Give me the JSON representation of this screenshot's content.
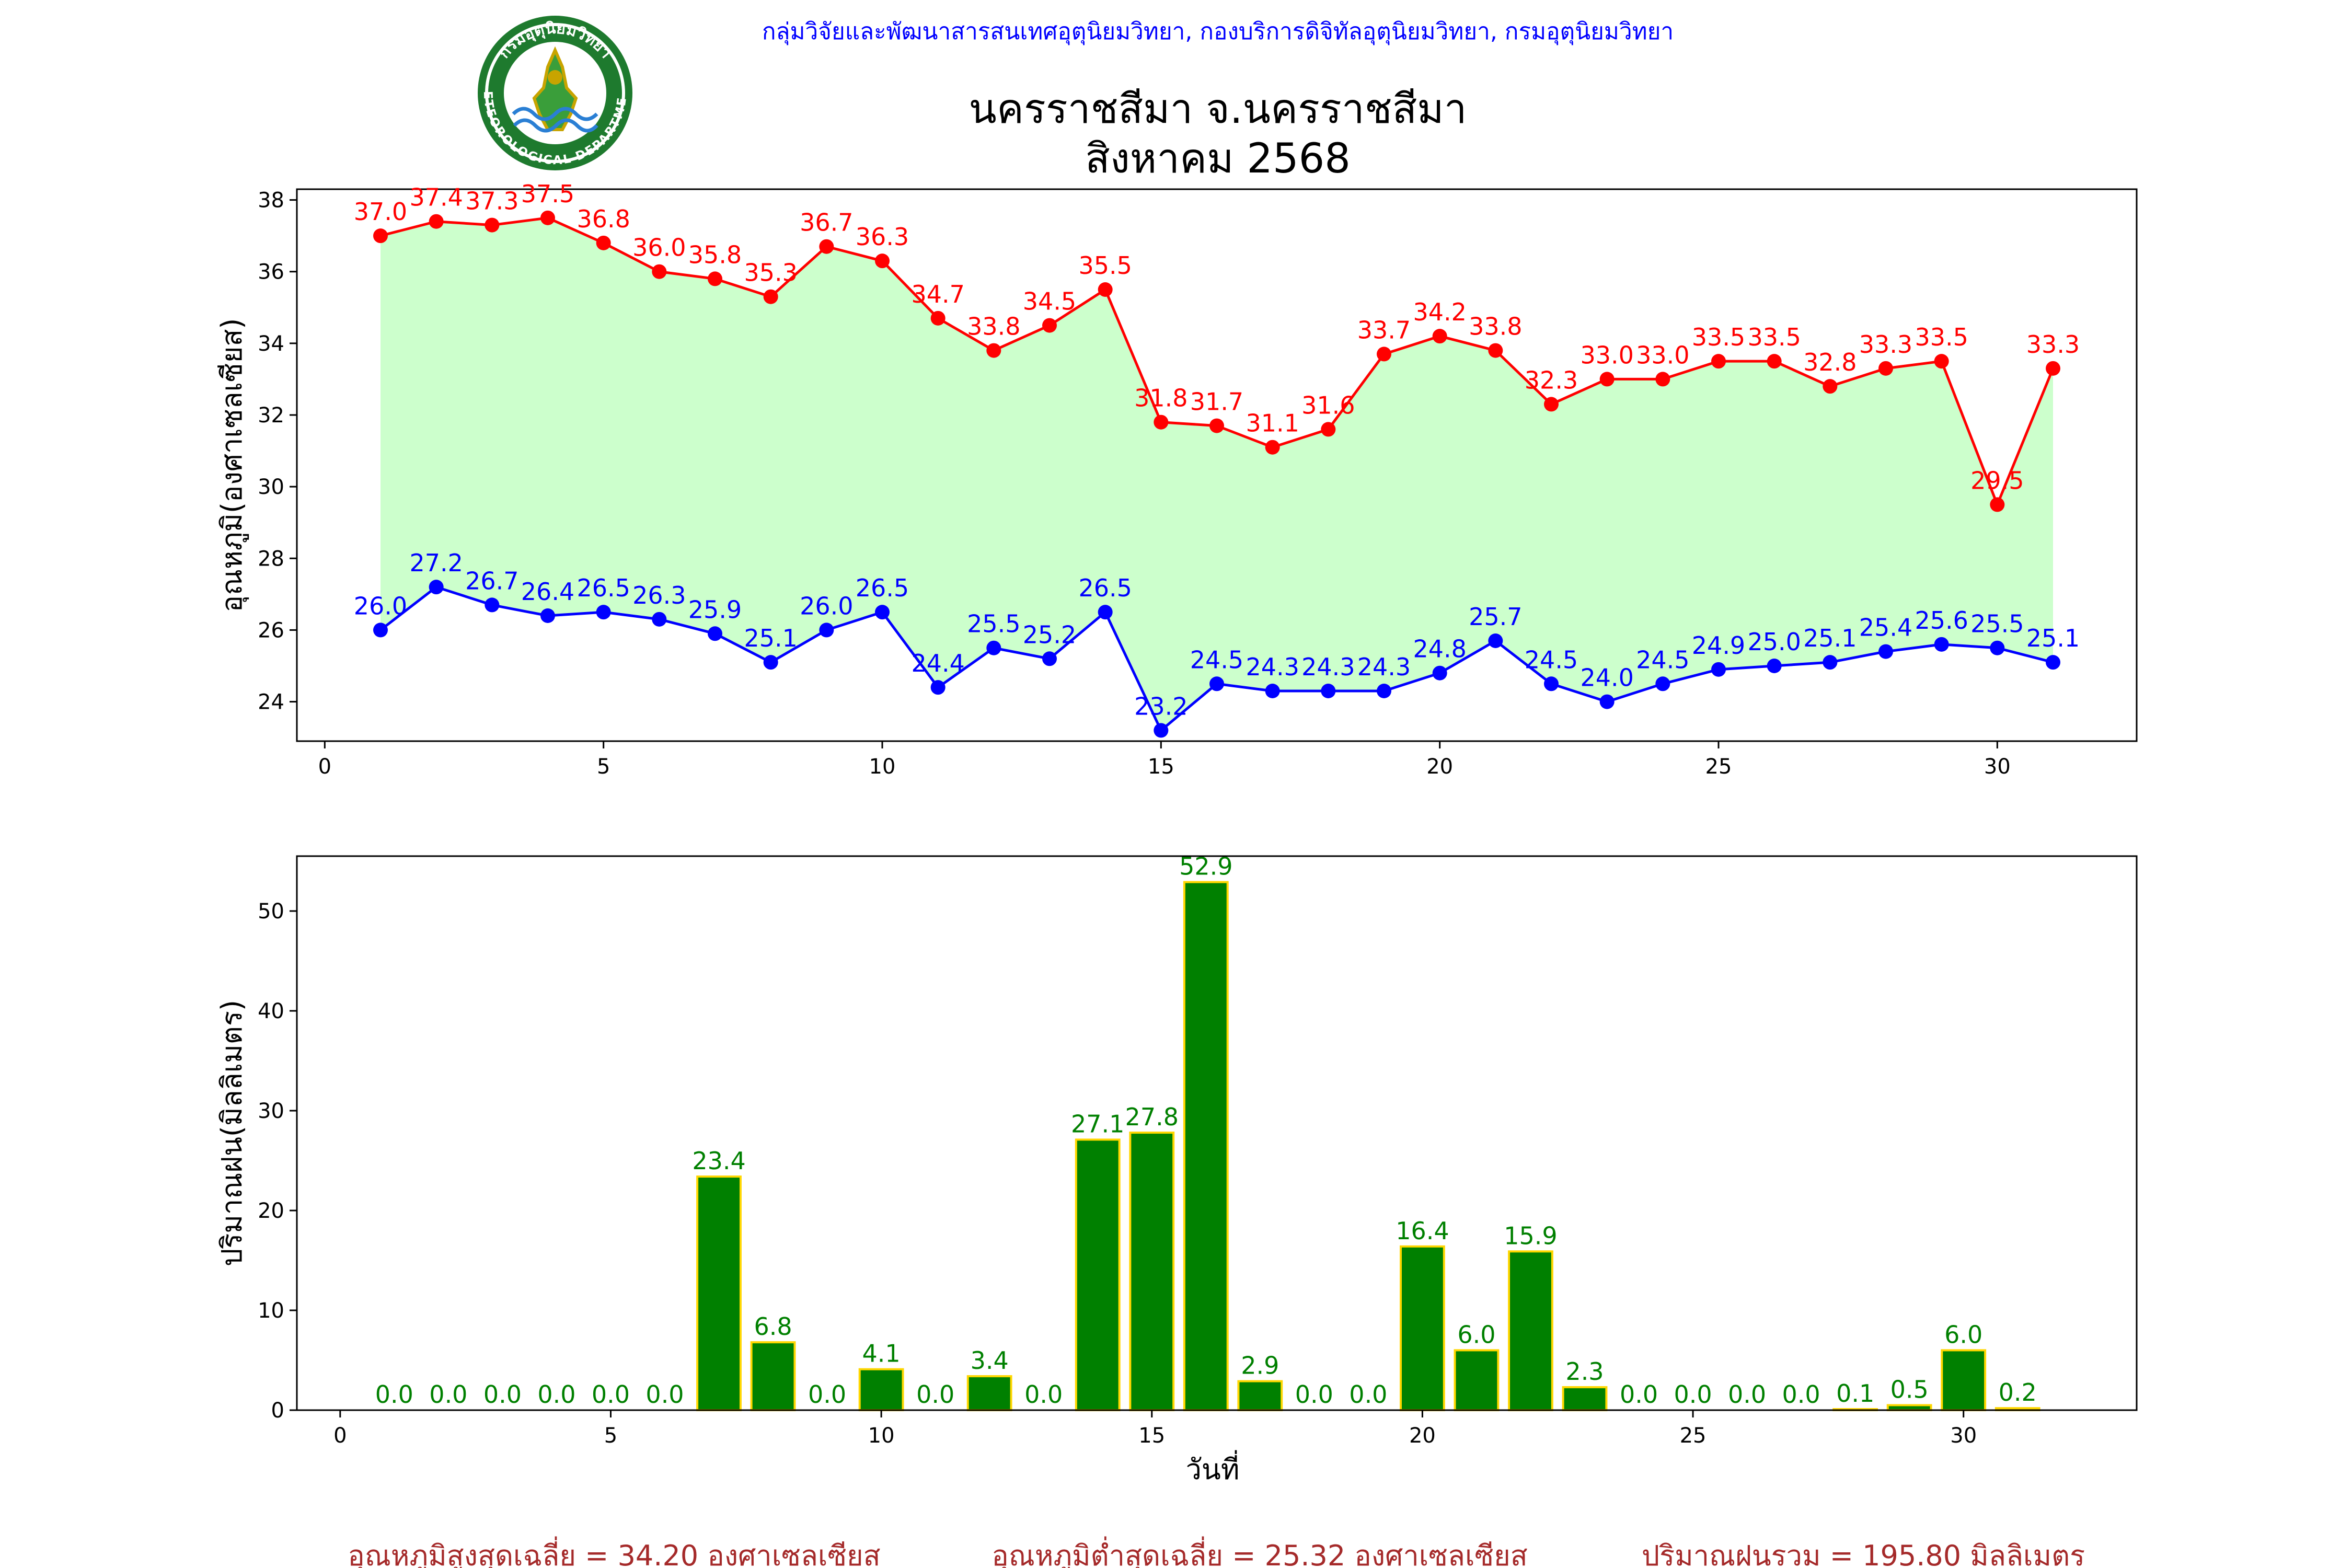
{
  "header": {
    "org_line": "กลุ่มวิจัยและพัฒนาสารสนเทศอุตุนิยมวิทยา, กองบริการดิจิทัลอุตุนิยมวิทยา, กรมอุตุนิยมวิทยา",
    "title_line1": "นครราชสีมา จ.นครราชสีมา",
    "title_line2": "สิงหาคม 2568",
    "logo_top_text": "กรมอุตุนิยมวิทยา",
    "logo_bottom_text": "METEOROLOGICAL DEPARTMENT"
  },
  "colors": {
    "max_line": "#ff0000",
    "min_line": "#0000ff",
    "fill": "#ccffcc",
    "bar": "#008000",
    "bar_edge": "#ffd700",
    "summary": "#a52a2a",
    "header_text": "#0000ff"
  },
  "chart_data": [
    {
      "type": "line",
      "title": "",
      "xlabel": "",
      "ylabel": "อุณหภูมิ(องศาเซลเซียส)",
      "xlim": [
        -0.5,
        32.5
      ],
      "ylim": [
        22.9,
        38.3
      ],
      "xticks": [
        0,
        5,
        10,
        15,
        20,
        25,
        30
      ],
      "yticks": [
        24,
        26,
        28,
        30,
        32,
        34,
        36,
        38
      ],
      "x": [
        1,
        2,
        3,
        4,
        5,
        6,
        7,
        8,
        9,
        10,
        11,
        12,
        13,
        14,
        15,
        16,
        17,
        18,
        19,
        20,
        21,
        22,
        23,
        24,
        25,
        26,
        27,
        28,
        29,
        30,
        31
      ],
      "series": [
        {
          "key": "max",
          "values": [
            37.0,
            37.4,
            37.3,
            37.5,
            36.8,
            36.0,
            35.8,
            35.3,
            36.7,
            36.3,
            34.7,
            33.8,
            34.5,
            35.5,
            31.8,
            31.7,
            31.1,
            31.6,
            33.7,
            34.2,
            33.8,
            32.3,
            33.0,
            33.0,
            33.5,
            33.5,
            32.8,
            33.3,
            33.5,
            29.5,
            33.3
          ]
        },
        {
          "key": "min",
          "values": [
            26.0,
            27.2,
            26.7,
            26.4,
            26.5,
            26.3,
            25.9,
            25.1,
            26.0,
            26.5,
            24.4,
            25.5,
            25.2,
            26.5,
            23.2,
            24.5,
            24.3,
            24.3,
            24.3,
            24.8,
            25.7,
            24.5,
            24.0,
            24.5,
            24.9,
            25.0,
            25.1,
            25.4,
            25.6,
            25.5,
            25.1
          ]
        }
      ],
      "fill_between": true,
      "grid": false
    },
    {
      "type": "bar",
      "title": "",
      "xlabel": "วันที่",
      "ylabel": "ปริมาณฝน(มิลลิเมตร)",
      "xlim": [
        -0.8,
        33.2
      ],
      "ylim": [
        0,
        55.5
      ],
      "xticks": [
        0,
        5,
        10,
        15,
        20,
        25,
        30
      ],
      "yticks": [
        0,
        10,
        20,
        30,
        40,
        50
      ],
      "x": [
        1,
        2,
        3,
        4,
        5,
        6,
        7,
        8,
        9,
        10,
        11,
        12,
        13,
        14,
        15,
        16,
        17,
        18,
        19,
        20,
        21,
        22,
        23,
        24,
        25,
        26,
        27,
        28,
        29,
        30,
        31
      ],
      "values": [
        0.0,
        0.0,
        0.0,
        0.0,
        0.0,
        0.0,
        23.4,
        6.8,
        0.0,
        4.1,
        0.0,
        3.4,
        0.0,
        27.1,
        27.8,
        52.9,
        2.9,
        0.0,
        0.0,
        16.4,
        6.0,
        15.9,
        2.3,
        0.0,
        0.0,
        0.0,
        0.0,
        0.1,
        0.5,
        6.0,
        0.2
      ],
      "grid": false
    }
  ],
  "summary": {
    "avg_max": "อุณหภูมิสูงสุดเฉลี่ย = 34.20 องศาเซลเซียส",
    "avg_min": "อุณหภูมิต่ำสุดเฉลี่ย = 25.32 องศาเซลเซียส",
    "total_rain": "ปริมาณฝนรวม = 195.80 มิลลิเมตร"
  }
}
